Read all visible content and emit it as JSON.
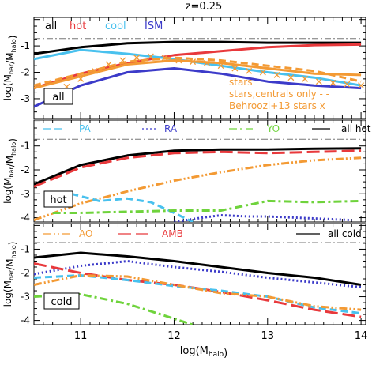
{
  "chart_data": {
    "type": "line",
    "title": "z=0.25",
    "xlabel": "log(M_halo)",
    "xlim": [
      10.5,
      14.05
    ],
    "x_ticks": [
      11,
      12,
      13,
      14
    ],
    "x_tick_labels": [
      "11",
      "12",
      "13",
      "14"
    ],
    "y_ticks": [
      -1,
      -2,
      -3,
      -4
    ],
    "y_tick_labels": [
      "-1",
      "-2",
      "-3",
      "-4"
    ],
    "reference_line_y": -0.72,
    "panels": [
      {
        "id": "all",
        "panel_label": "all",
        "ylabel": "log(M_bar/M_halo)",
        "ylim": [
          -3.75,
          0.08
        ],
        "legend_top": [
          {
            "text": "all",
            "color": "#000000"
          },
          {
            "text": "hot",
            "color": "#e8393c"
          },
          {
            "text": "cool",
            "color": "#49c1ee"
          },
          {
            "text": "ISM",
            "color": "#3c3bc9"
          }
        ],
        "legend_right": [
          {
            "text": "stars",
            "color": "#f39a34"
          },
          {
            "text": "stars,centrals only - -",
            "color": "#f39a34"
          },
          {
            "text": "Behroozi+13 stars x",
            "color": "#f39a34"
          }
        ],
        "series": [
          {
            "name": "all",
            "color": "#000000",
            "dash": "solid",
            "width": 3,
            "x": [
              10.5,
              11.0,
              11.5,
              12.0,
              12.5,
              13.0,
              13.5,
              14.0
            ],
            "y": [
              -1.3,
              -1.05,
              -0.9,
              -0.85,
              -0.85,
              -0.88,
              -0.88,
              -0.88
            ]
          },
          {
            "name": "hot",
            "color": "#e8393c",
            "dash": "solid",
            "width": 3,
            "x": [
              10.5,
              11.0,
              11.5,
              12.0,
              12.5,
              13.0,
              13.5,
              14.0
            ],
            "y": [
              -2.6,
              -2.05,
              -1.65,
              -1.35,
              -1.2,
              -1.05,
              -0.97,
              -0.95
            ]
          },
          {
            "name": "cool",
            "color": "#49c1ee",
            "dash": "solid",
            "width": 3,
            "x": [
              10.5,
              11.0,
              11.5,
              12.0,
              12.5,
              13.0,
              13.5,
              14.0
            ],
            "y": [
              -1.5,
              -1.15,
              -1.3,
              -1.5,
              -1.75,
              -2.0,
              -2.2,
              -2.5
            ]
          },
          {
            "name": "ISM",
            "color": "#3c3bc9",
            "dash": "solid",
            "width": 3,
            "x": [
              10.5,
              11.0,
              11.5,
              12.0,
              12.5,
              13.0,
              13.5,
              14.0
            ],
            "y": [
              -3.3,
              -2.5,
              -2.0,
              -1.85,
              -2.05,
              -2.35,
              -2.5,
              -2.6
            ]
          },
          {
            "name": "stars",
            "color": "#f39a34",
            "dash": "solid",
            "width": 3,
            "x": [
              10.5,
              11.0,
              11.5,
              12.0,
              12.5,
              13.0,
              13.5,
              14.0
            ],
            "y": [
              -2.6,
              -2.15,
              -1.7,
              -1.55,
              -1.65,
              -1.85,
              -2.05,
              -2.1
            ]
          },
          {
            "name": "stars,centrals only",
            "color": "#f39a34",
            "dash": "dashed",
            "width": 3,
            "x": [
              10.5,
              11.0,
              11.5,
              12.0,
              12.5,
              13.0,
              13.5,
              14.0
            ],
            "y": [
              -2.5,
              -2.05,
              -1.6,
              -1.45,
              -1.55,
              -1.75,
              -1.95,
              -2.35
            ]
          }
        ],
        "markers": [
          {
            "name": "Behroozi+13 stars",
            "color": "#f39a34",
            "symbol": "x",
            "x": [
              10.7,
              10.85,
              11.0,
              11.15,
              11.3,
              11.45,
              11.6,
              11.75,
              11.9,
              12.05,
              12.2,
              12.35,
              12.5,
              12.65,
              12.8,
              12.95,
              13.1,
              13.25,
              13.4,
              13.55,
              13.7,
              13.85,
              14.0
            ],
            "y": [
              -2.85,
              -2.55,
              -2.25,
              -1.95,
              -1.7,
              -1.55,
              -1.45,
              -1.4,
              -1.45,
              -1.55,
              -1.6,
              -1.65,
              -1.75,
              -1.85,
              -1.95,
              -2.0,
              -2.1,
              -2.2,
              -2.25,
              -2.35,
              -2.4,
              -2.45,
              -2.5
            ]
          }
        ]
      },
      {
        "id": "hot",
        "panel_label": "hot",
        "ylabel": "log(M_bar/M_halo)",
        "ylim": [
          -4.18,
          0.08
        ],
        "legend_top": [
          {
            "text": "PA",
            "color": "#49c1ee",
            "dash": "dashed"
          },
          {
            "text": "RA",
            "color": "#3c3bc9",
            "dash": "dotted"
          },
          {
            "text": "YO",
            "color": "#6fd33c",
            "dash": "dashdot"
          },
          {
            "text": "all hot",
            "color": "#000000",
            "dash": "solid"
          }
        ],
        "series": [
          {
            "name": "all hot",
            "color": "#000000",
            "dash": "solid",
            "width": 3,
            "x": [
              10.5,
              11.0,
              11.5,
              12.0,
              12.5,
              13.0,
              13.5,
              14.0
            ],
            "y": [
              -2.6,
              -1.8,
              -1.4,
              -1.2,
              -1.15,
              -1.15,
              -1.12,
              -1.1
            ]
          },
          {
            "name": "AMB",
            "color": "#e8393c",
            "dash": "longdash",
            "width": 3,
            "x": [
              10.5,
              11.0,
              11.5,
              12.0,
              12.5,
              13.0,
              13.5,
              14.0
            ],
            "y": [
              -2.7,
              -1.9,
              -1.5,
              -1.3,
              -1.25,
              -1.3,
              -1.25,
              -1.2
            ]
          },
          {
            "name": "AO",
            "color": "#f39a34",
            "dash": "dashdotdot",
            "width": 3,
            "x": [
              10.5,
              11.0,
              11.5,
              12.0,
              12.5,
              13.0,
              13.5,
              14.0
            ],
            "y": [
              -4.1,
              -3.4,
              -2.9,
              -2.45,
              -2.1,
              -1.8,
              -1.6,
              -1.5
            ]
          },
          {
            "name": "PA",
            "color": "#49c1ee",
            "dash": "dashed",
            "width": 3,
            "x": [
              10.9,
              11.2,
              11.5,
              11.75,
              12.0,
              12.2
            ],
            "y": [
              -3.0,
              -3.3,
              -3.2,
              -3.35,
              -3.8,
              -4.18
            ]
          },
          {
            "name": "YO",
            "color": "#6fd33c",
            "dash": "dashdot",
            "width": 3,
            "x": [
              10.7,
              11.0,
              11.5,
              12.0,
              12.5,
              13.0,
              13.5,
              14.0
            ],
            "y": [
              -3.8,
              -3.8,
              -3.75,
              -3.7,
              -3.7,
              -3.3,
              -3.35,
              -3.3
            ]
          },
          {
            "name": "RA",
            "color": "#3c3bc9",
            "dash": "dotted",
            "width": 3,
            "x": [
              12.0,
              12.3,
              12.5,
              12.8,
              13.0,
              13.3,
              13.6,
              13.9
            ],
            "y": [
              -4.18,
              -4.0,
              -3.9,
              -3.95,
              -3.95,
              -4.0,
              -4.05,
              -4.1
            ]
          }
        ]
      },
      {
        "id": "cold",
        "panel_label": "cold",
        "ylabel": "log(M_bar/M_halo)",
        "ylim": [
          -4.18,
          0.08
        ],
        "legend_top": [
          {
            "text": "AO",
            "color": "#f39a34",
            "dash": "dashdotdot"
          },
          {
            "text": "AMB",
            "color": "#e8393c",
            "dash": "longdash"
          },
          {
            "text": "all cold",
            "color": "#000000",
            "dash": "solid"
          }
        ],
        "series": [
          {
            "name": "all cold",
            "color": "#000000",
            "dash": "solid",
            "width": 3,
            "x": [
              10.5,
              11.0,
              11.5,
              12.0,
              12.5,
              13.0,
              13.5,
              14.0
            ],
            "y": [
              -1.35,
              -1.15,
              -1.3,
              -1.5,
              -1.75,
              -2.0,
              -2.2,
              -2.5
            ]
          },
          {
            "name": "RA",
            "color": "#3c3bc9",
            "dash": "dotted",
            "width": 3,
            "x": [
              10.5,
              11.0,
              11.5,
              12.0,
              12.5,
              13.0,
              13.5,
              14.0
            ],
            "y": [
              -2.05,
              -1.7,
              -1.5,
              -1.75,
              -1.95,
              -2.2,
              -2.4,
              -2.6
            ]
          },
          {
            "name": "AMB",
            "color": "#e8393c",
            "dash": "longdash",
            "width": 3,
            "x": [
              10.5,
              11.0,
              11.5,
              12.0,
              12.5,
              13.0,
              13.5,
              14.0
            ],
            "y": [
              -1.6,
              -2.0,
              -2.3,
              -2.5,
              -2.8,
              -3.15,
              -3.55,
              -3.85
            ]
          },
          {
            "name": "PA",
            "color": "#49c1ee",
            "dash": "dashed",
            "width": 3,
            "x": [
              10.5,
              11.0,
              11.5,
              12.0,
              12.5,
              13.0,
              13.5,
              14.0
            ],
            "y": [
              -2.2,
              -2.1,
              -2.3,
              -2.55,
              -2.75,
              -3.0,
              -3.45,
              -3.7
            ]
          },
          {
            "name": "AO",
            "color": "#f39a34",
            "dash": "dashdotdot",
            "width": 3,
            "x": [
              10.5,
              11.0,
              11.5,
              12.0,
              12.5,
              13.0,
              13.5,
              14.0
            ],
            "y": [
              -2.5,
              -2.1,
              -2.15,
              -2.5,
              -2.85,
              -3.0,
              -3.4,
              -3.55
            ]
          },
          {
            "name": "YO",
            "color": "#6fd33c",
            "dash": "dashdot",
            "width": 3,
            "x": [
              10.5,
              11.0,
              11.5,
              11.9,
              12.2
            ],
            "y": [
              -3.0,
              -2.9,
              -3.3,
              -3.8,
              -4.18
            ]
          }
        ]
      }
    ]
  }
}
